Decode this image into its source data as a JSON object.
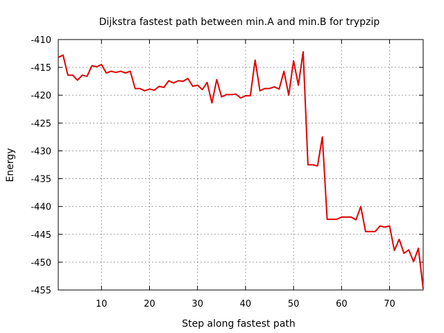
{
  "chart_data": {
    "type": "line",
    "title": "Dijkstra fastest path between min.A and min.B for trypzip",
    "xlabel": "Step along fastest path",
    "ylabel": "Energy",
    "xlim": [
      1,
      77
    ],
    "ylim": [
      -455,
      -410
    ],
    "xticks": [
      10,
      20,
      30,
      40,
      50,
      60,
      70
    ],
    "yticks": [
      -410,
      -415,
      -420,
      -425,
      -430,
      -435,
      -440,
      -445,
      -450,
      -455
    ],
    "grid": true,
    "legend": "none",
    "series": [
      {
        "color": "#e00000",
        "x": [
          1,
          2,
          3,
          4,
          5,
          6,
          7,
          8,
          9,
          10,
          11,
          12,
          13,
          14,
          15,
          16,
          17,
          18,
          19,
          20,
          21,
          22,
          23,
          24,
          25,
          26,
          27,
          28,
          29,
          30,
          31,
          32,
          33,
          34,
          35,
          36,
          37,
          38,
          39,
          40,
          41,
          42,
          43,
          44,
          45,
          46,
          47,
          48,
          49,
          50,
          51,
          52,
          53,
          54,
          55,
          56,
          57,
          58,
          59,
          60,
          61,
          62,
          63,
          64,
          65,
          66,
          67,
          68,
          69,
          70,
          71,
          72,
          73,
          74,
          75,
          76,
          77
        ],
        "y": [
          -413.2,
          -412.8,
          -416.4,
          -416.4,
          -417.3,
          -416.4,
          -416.6,
          -414.7,
          -414.9,
          -414.5,
          -416.0,
          -415.7,
          -415.9,
          -415.7,
          -416.0,
          -415.7,
          -418.8,
          -418.8,
          -419.2,
          -418.9,
          -419.1,
          -418.4,
          -418.6,
          -417.4,
          -417.8,
          -417.4,
          -417.5,
          -417.0,
          -418.4,
          -418.2,
          -419.0,
          -417.7,
          -421.4,
          -417.2,
          -420.3,
          -419.9,
          -419.9,
          -419.8,
          -420.5,
          -420.1,
          -420.1,
          -413.7,
          -419.2,
          -418.8,
          -418.8,
          -418.5,
          -418.9,
          -415.7,
          -420.0,
          -413.8,
          -418.2,
          -412.2,
          -432.5,
          -432.5,
          -432.7,
          -427.5,
          -442.3,
          -442.3,
          -442.3,
          -441.9,
          -441.9,
          -441.9,
          -442.4,
          -440.0,
          -444.5,
          -444.5,
          -444.5,
          -443.5,
          -443.7,
          -443.5,
          -447.9,
          -445.9,
          -448.4,
          -447.8,
          -449.9,
          -447.5,
          -454.8
        ]
      }
    ]
  }
}
